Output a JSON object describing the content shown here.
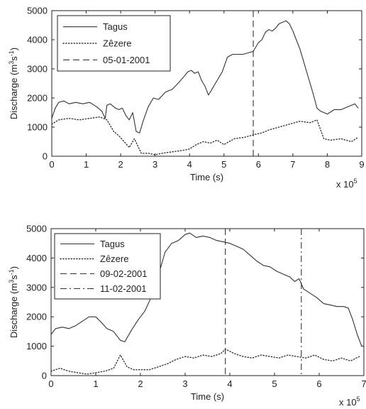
{
  "chart_data": [
    {
      "type": "line",
      "xlabel": "Time (s)",
      "ylabel": "Discharge (m3s-1)",
      "ylabel_parts": {
        "base": "Discharge (m",
        "sup1": "3",
        "mid": "s",
        "sup2": "-1",
        "end": ")"
      },
      "x_multiplier": {
        "base": "x 10",
        "exponent": "5"
      },
      "xlim": [
        0,
        9
      ],
      "ylim": [
        0,
        5000
      ],
      "xticks": [
        0,
        1,
        2,
        3,
        4,
        5,
        6,
        7,
        8,
        9
      ],
      "yticks": [
        0,
        1000,
        2000,
        3000,
        4000,
        5000
      ],
      "grid": false,
      "legend_position": "top-left",
      "series": [
        {
          "name": "Tagus",
          "style": "solid",
          "x": [
            0,
            0.1,
            0.2,
            0.35,
            0.5,
            0.7,
            0.9,
            1.1,
            1.3,
            1.45,
            1.55,
            1.6,
            1.7,
            1.85,
            1.95,
            2.05,
            2.15,
            2.25,
            2.35,
            2.45,
            2.55,
            2.65,
            2.8,
            2.95,
            3.1,
            3.3,
            3.5,
            3.7,
            3.85,
            3.95,
            4.05,
            4.15,
            4.25,
            4.35,
            4.45,
            4.55,
            4.65,
            4.8,
            4.95,
            5.1,
            5.25,
            5.4,
            5.55,
            5.7,
            5.85,
            6.0,
            6.1,
            6.2,
            6.3,
            6.4,
            6.5,
            6.6,
            6.7,
            6.8,
            6.9,
            7.0,
            7.1,
            7.2,
            7.3,
            7.4,
            7.5,
            7.6,
            7.7,
            7.8,
            7.9,
            8.0,
            8.2,
            8.4,
            8.6,
            8.8,
            8.9
          ],
          "y": [
            1300,
            1650,
            1850,
            1900,
            1800,
            1850,
            1800,
            1850,
            1700,
            1550,
            1300,
            1750,
            1800,
            1650,
            1600,
            1650,
            1400,
            1250,
            1500,
            850,
            800,
            1200,
            1700,
            2000,
            1950,
            2200,
            2300,
            2550,
            2750,
            2900,
            2950,
            2850,
            2900,
            2600,
            2400,
            2100,
            2300,
            2600,
            2900,
            3400,
            3500,
            3500,
            3500,
            3550,
            3600,
            3900,
            4000,
            4250,
            4350,
            4300,
            4400,
            4550,
            4600,
            4650,
            4550,
            4300,
            4000,
            3700,
            3300,
            2900,
            2500,
            2100,
            1650,
            1550,
            1500,
            1450,
            1600,
            1600,
            1700,
            1800,
            1650
          ]
        },
        {
          "name": "Zêzere",
          "style": "dotted",
          "x": [
            0,
            0.2,
            0.5,
            0.8,
            1.1,
            1.4,
            1.6,
            1.8,
            1.95,
            2.1,
            2.25,
            2.4,
            2.5,
            2.6,
            2.8,
            3.0,
            3.2,
            3.5,
            3.8,
            4.0,
            4.2,
            4.4,
            4.6,
            4.8,
            5.0,
            5.3,
            5.6,
            5.9,
            6.1,
            6.3,
            6.6,
            6.9,
            7.2,
            7.5,
            7.7,
            7.9,
            8.1,
            8.4,
            8.7,
            8.9
          ],
          "y": [
            1100,
            1250,
            1300,
            1250,
            1300,
            1350,
            1250,
            850,
            700,
            500,
            300,
            600,
            350,
            100,
            100,
            50,
            100,
            150,
            200,
            250,
            400,
            500,
            450,
            550,
            400,
            600,
            650,
            750,
            800,
            900,
            1000,
            1100,
            1200,
            1150,
            1250,
            600,
            550,
            600,
            500,
            650
          ]
        }
      ],
      "vlines": [
        {
          "name": "05-01-2001",
          "style": "dashed",
          "x": 5.85
        }
      ]
    },
    {
      "type": "line",
      "xlabel": "Time (s)",
      "ylabel": "Discharge (m3s-1)",
      "ylabel_parts": {
        "base": "Discharge (m",
        "sup1": "3",
        "mid": "s",
        "sup2": "-1",
        "end": ")"
      },
      "x_multiplier": {
        "base": "x 10",
        "exponent": "5"
      },
      "xlim": [
        0,
        7
      ],
      "ylim": [
        0,
        5000
      ],
      "xticks": [
        0,
        1,
        2,
        3,
        4,
        5,
        6,
        7
      ],
      "yticks": [
        0,
        1000,
        2000,
        3000,
        4000,
        5000
      ],
      "grid": false,
      "legend_position": "top-left",
      "series": [
        {
          "name": "Tagus",
          "style": "solid",
          "x": [
            0,
            0.1,
            0.25,
            0.4,
            0.55,
            0.7,
            0.85,
            1.0,
            1.1,
            1.25,
            1.4,
            1.55,
            1.65,
            1.8,
            1.95,
            2.1,
            2.25,
            2.4,
            2.55,
            2.7,
            2.85,
            3.0,
            3.1,
            3.25,
            3.4,
            3.55,
            3.7,
            3.85,
            4.0,
            4.15,
            4.3,
            4.45,
            4.6,
            4.75,
            4.9,
            5.05,
            5.2,
            5.35,
            5.45,
            5.55,
            5.65,
            5.8,
            5.95,
            6.1,
            6.25,
            6.4,
            6.55,
            6.65,
            6.75,
            6.85,
            6.95
          ],
          "y": [
            1400,
            1600,
            1650,
            1600,
            1700,
            1850,
            2000,
            2000,
            1850,
            1600,
            1500,
            1200,
            1150,
            1550,
            1900,
            2200,
            2700,
            3400,
            4200,
            4500,
            4600,
            4800,
            4850,
            4700,
            4750,
            4700,
            4600,
            4550,
            4500,
            4400,
            4300,
            4100,
            3900,
            3750,
            3700,
            3550,
            3450,
            3350,
            3200,
            3300,
            2950,
            2800,
            2650,
            2450,
            2400,
            2350,
            2350,
            2300,
            1900,
            1400,
            1000
          ]
        },
        {
          "name": "Zêzere",
          "style": "dotted",
          "x": [
            0,
            0.2,
            0.4,
            0.6,
            0.8,
            1.0,
            1.2,
            1.4,
            1.55,
            1.7,
            1.85,
            2.0,
            2.2,
            2.4,
            2.6,
            2.8,
            3.0,
            3.2,
            3.4,
            3.6,
            3.8,
            3.9,
            4.1,
            4.3,
            4.5,
            4.7,
            4.9,
            5.1,
            5.3,
            5.5,
            5.7,
            5.9,
            6.1,
            6.3,
            6.5,
            6.7,
            6.9
          ],
          "y": [
            150,
            250,
            150,
            100,
            50,
            100,
            150,
            250,
            700,
            300,
            200,
            200,
            200,
            300,
            400,
            550,
            650,
            600,
            700,
            650,
            750,
            900,
            750,
            650,
            600,
            700,
            650,
            600,
            700,
            650,
            600,
            700,
            550,
            500,
            600,
            500,
            650
          ]
        }
      ],
      "vlines": [
        {
          "name": "09-02-2001",
          "style": "dashed",
          "x": 3.9
        },
        {
          "name": "11-02-2001",
          "style": "dashdot",
          "x": 5.6
        }
      ]
    }
  ]
}
